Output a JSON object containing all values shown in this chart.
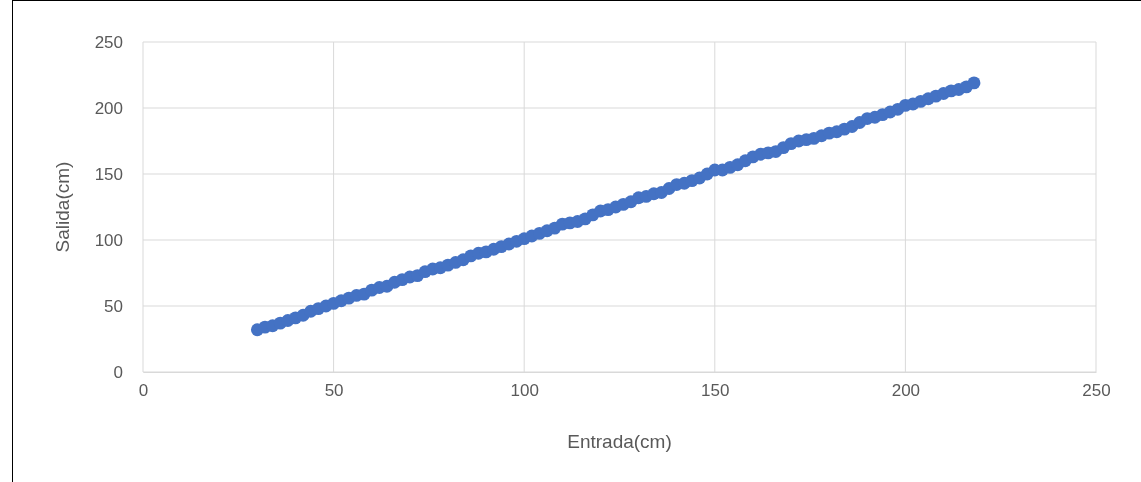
{
  "chart_data": {
    "type": "scatter",
    "xlabel": "Entrada(cm)",
    "ylabel": "Salida(cm)",
    "x": [
      30,
      32,
      34,
      36,
      38,
      40,
      42,
      44,
      46,
      48,
      50,
      52,
      54,
      56,
      58,
      60,
      62,
      64,
      66,
      68,
      70,
      72,
      74,
      76,
      78,
      80,
      82,
      84,
      86,
      88,
      90,
      92,
      94,
      96,
      98,
      100,
      102,
      104,
      106,
      108,
      110,
      112,
      114,
      116,
      118,
      120,
      122,
      124,
      126,
      128,
      130,
      132,
      134,
      136,
      138,
      140,
      142,
      144,
      146,
      148,
      150,
      152,
      154,
      156,
      158,
      160,
      162,
      164,
      166,
      168,
      170,
      172,
      174,
      176,
      178,
      180,
      182,
      184,
      186,
      188,
      190,
      192,
      194,
      196,
      198,
      200,
      202,
      204,
      206,
      208,
      210,
      212,
      214,
      216,
      218
    ],
    "series": [
      {
        "color": "#4472c4",
        "values": [
          32,
          34,
          35,
          37,
          39,
          41,
          43,
          46,
          48,
          50,
          52,
          54,
          56,
          58,
          59,
          62,
          64,
          65,
          68,
          70,
          72,
          73,
          76,
          78,
          79,
          81,
          83,
          85,
          88,
          90,
          91,
          93,
          95,
          97,
          99,
          101,
          103,
          105,
          107,
          109,
          112,
          113,
          114,
          116,
          119,
          122,
          123,
          125,
          127,
          129,
          132,
          133,
          135,
          136,
          139,
          142,
          143,
          145,
          147,
          150,
          153,
          153,
          155,
          157,
          160,
          163,
          165,
          166,
          167,
          170,
          173,
          175,
          176,
          177,
          179,
          181,
          182,
          184,
          186,
          189,
          192,
          193,
          195,
          197,
          199,
          202,
          203,
          205,
          207,
          209,
          211,
          213,
          214,
          216,
          219
        ]
      }
    ],
    "xlim": [
      0,
      250
    ],
    "xticks": [
      0,
      50,
      100,
      150,
      200,
      250
    ],
    "ylim": [
      0,
      250
    ],
    "yticks": [
      0,
      50,
      100,
      150,
      200,
      250
    ],
    "grid": true,
    "marker": "circle"
  }
}
